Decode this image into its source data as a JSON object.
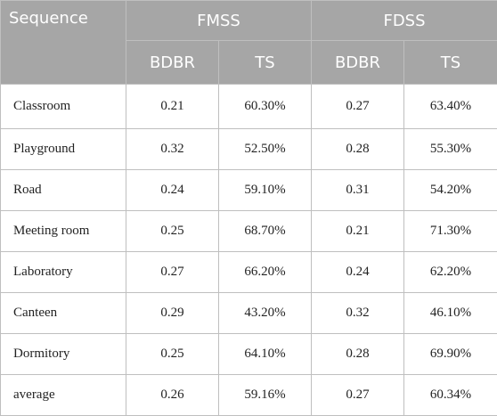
{
  "table": {
    "header": {
      "sequence": "Sequence",
      "groups": [
        "FMSS",
        "FDSS"
      ],
      "sub": [
        "BDBR",
        "TS",
        "BDBR",
        "TS"
      ]
    },
    "rows": [
      [
        "Classroom",
        "0.21",
        "60.30%",
        "0.27",
        "63.40%"
      ],
      [
        "Playground",
        "0.32",
        "52.50%",
        "0.28",
        "55.30%"
      ],
      [
        "Road",
        "0.24",
        "59.10%",
        "0.31",
        "54.20%"
      ],
      [
        "Meeting room",
        "0.25",
        "68.70%",
        "0.21",
        "71.30%"
      ],
      [
        "Laboratory",
        "0.27",
        "66.20%",
        "0.24",
        "62.20%"
      ],
      [
        "Canteen",
        "0.29",
        "43.20%",
        "0.32",
        "46.10%"
      ],
      [
        "Dormitory",
        "0.25",
        "64.10%",
        "0.28",
        "69.90%"
      ],
      [
        "average",
        "0.26",
        "59.16%",
        "0.27",
        "60.34%"
      ]
    ]
  }
}
